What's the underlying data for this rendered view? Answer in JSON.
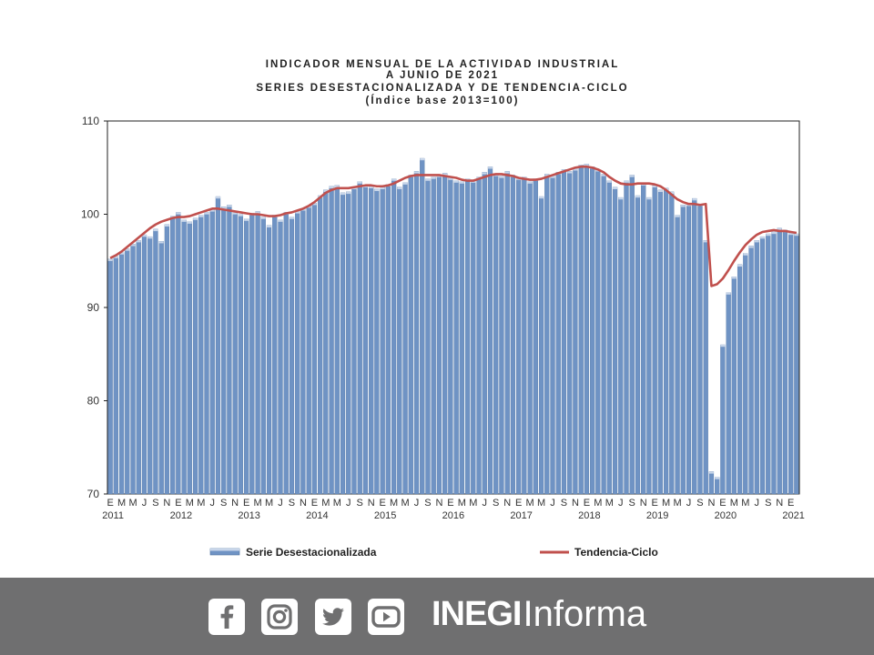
{
  "chart_data": {
    "type": "bar",
    "title_lines": [
      "INDICADOR MENSUAL DE LA ACTIVIDAD INDUSTRIAL",
      "A JUNIO DE 2021",
      "SERIES DESESTACIONALIZADA Y DE TENDENCIA-CICLO",
      "(Índice base 2013=100)"
    ],
    "ylim": [
      70,
      110
    ],
    "yticks": [
      70,
      80,
      90,
      100,
      110
    ],
    "month_tick_labels": [
      "E",
      "M",
      "M",
      "J",
      "S",
      "N"
    ],
    "years": [
      "2011",
      "2012",
      "2013",
      "2014",
      "2015",
      "2016",
      "2017",
      "2018",
      "2019",
      "2020",
      "2021"
    ],
    "series": [
      {
        "name": "Serie Desestacionalizada",
        "values": [
          95.2,
          95.5,
          95.9,
          96.3,
          96.8,
          97.2,
          97.8,
          97.6,
          98.4,
          97.1,
          98.9,
          99.8,
          100.2,
          99.4,
          99.2,
          99.6,
          99.9,
          100.2,
          100.5,
          101.9,
          100.8,
          101.0,
          100.2,
          100.0,
          99.5,
          100.1,
          100.3,
          99.7,
          98.8,
          99.9,
          99.4,
          100.2,
          99.7,
          100.3,
          100.6,
          100.9,
          101.2,
          102.0,
          102.6,
          103.0,
          103.1,
          102.3,
          102.4,
          102.9,
          103.5,
          103.1,
          103.0,
          102.7,
          102.9,
          103.2,
          103.8,
          102.9,
          103.4,
          104.2,
          104.6,
          106.0,
          103.8,
          104.0,
          104.2,
          104.4,
          103.9,
          103.6,
          103.5,
          103.8,
          103.6,
          104.0,
          104.5,
          105.1,
          104.3,
          104.1,
          104.6,
          104.2,
          103.9,
          104.0,
          103.5,
          103.8,
          101.9,
          104.3,
          104.1,
          104.5,
          104.8,
          104.6,
          104.9,
          105.3,
          105.4,
          105.1,
          104.8,
          104.3,
          103.6,
          102.9,
          101.8,
          103.6,
          104.2,
          102.0,
          103.3,
          101.8,
          103.1,
          102.6,
          102.8,
          102.4,
          99.9,
          101.0,
          101.1,
          101.7,
          101.1,
          97.2,
          72.4,
          71.8,
          86.0,
          91.6,
          93.3,
          94.6,
          95.8,
          96.6,
          97.2,
          97.6,
          97.9,
          98.1,
          98.5,
          98.3,
          98.0,
          97.9
        ]
      },
      {
        "name": "Tendencia-Ciclo",
        "values": [
          95.3,
          95.6,
          96.0,
          96.5,
          97.0,
          97.5,
          98.0,
          98.5,
          98.9,
          99.2,
          99.4,
          99.6,
          99.7,
          99.7,
          99.8,
          100.0,
          100.2,
          100.4,
          100.6,
          100.6,
          100.5,
          100.4,
          100.3,
          100.2,
          100.1,
          100.0,
          100.0,
          99.9,
          99.8,
          99.8,
          99.9,
          100.1,
          100.2,
          100.4,
          100.6,
          100.9,
          101.3,
          101.8,
          102.3,
          102.6,
          102.8,
          102.8,
          102.8,
          102.9,
          103.0,
          103.1,
          103.1,
          103.0,
          103.0,
          103.1,
          103.3,
          103.6,
          103.9,
          104.1,
          104.2,
          104.2,
          104.2,
          104.2,
          104.2,
          104.1,
          104.0,
          103.9,
          103.7,
          103.6,
          103.6,
          103.8,
          104.0,
          104.2,
          104.3,
          104.3,
          104.2,
          104.1,
          103.9,
          103.8,
          103.7,
          103.7,
          103.8,
          104.0,
          104.2,
          104.4,
          104.6,
          104.8,
          105.0,
          105.1,
          105.1,
          105.0,
          104.8,
          104.5,
          104.0,
          103.6,
          103.3,
          103.2,
          103.2,
          103.3,
          103.3,
          103.3,
          103.2,
          103.0,
          102.6,
          102.1,
          101.6,
          101.3,
          101.1,
          101.1,
          101.0,
          101.1,
          92.3,
          92.5,
          93.1,
          94.0,
          95.0,
          95.9,
          96.7,
          97.3,
          97.8,
          98.1,
          98.2,
          98.3,
          98.2,
          98.2,
          98.1,
          98.0
        ]
      }
    ],
    "legend": {
      "bar_label": "Serie Desestacionalizada",
      "line_label": "Tendencia-Ciclo",
      "position": "bottom"
    },
    "colors": {
      "bar": "#6f93c4",
      "bar_highlight": "#c8d6ea",
      "line": "#c0504d",
      "footer_bg": "#6f6f70"
    }
  },
  "footer": {
    "icons": [
      "facebook-icon",
      "instagram-icon",
      "twitter-icon",
      "youtube-icon"
    ],
    "brand_strong": "INEGI",
    "brand_light": "Informa"
  }
}
